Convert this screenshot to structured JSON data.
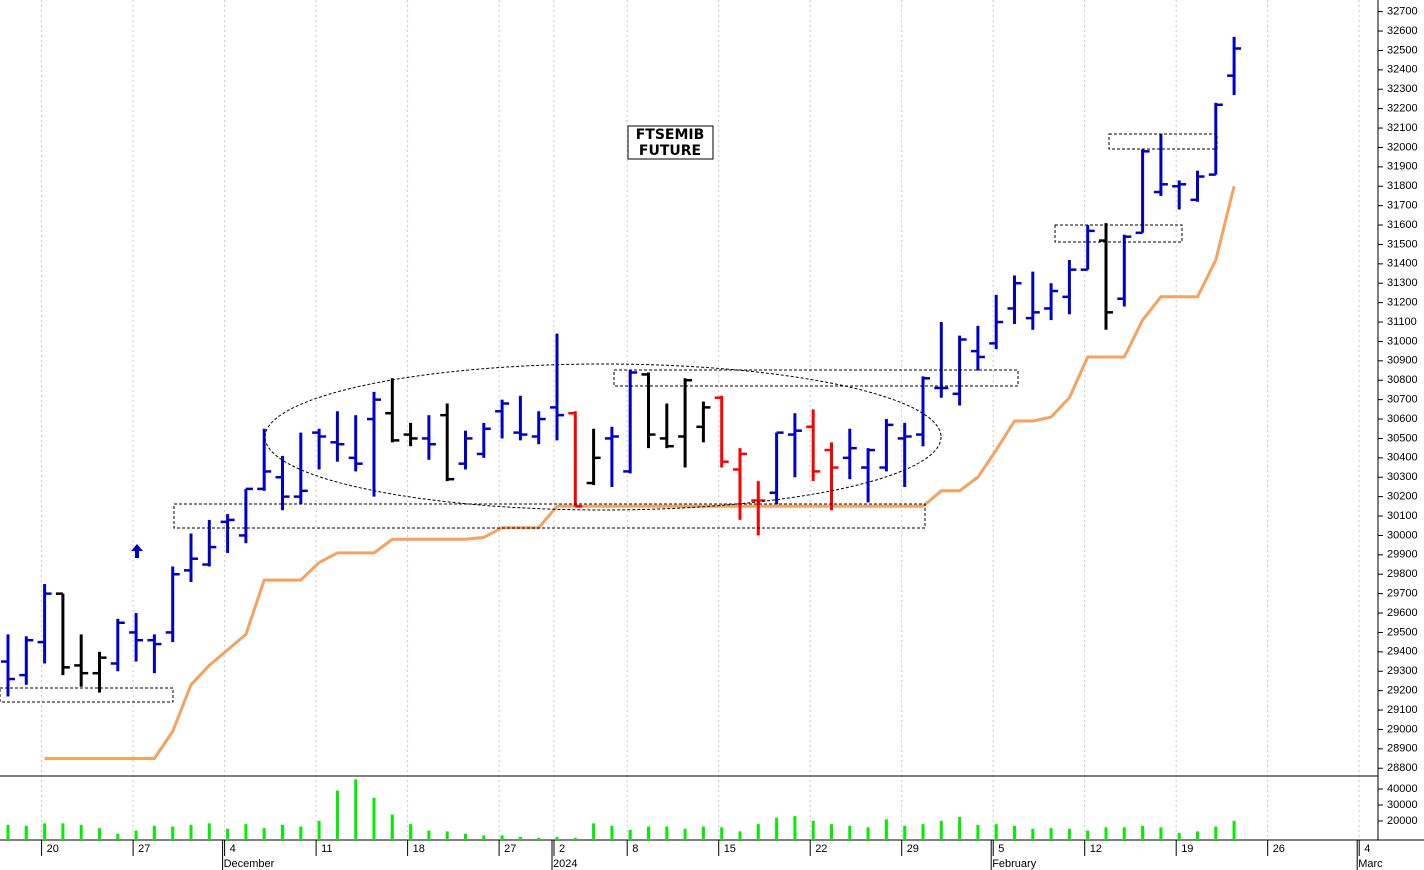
{
  "chart_data": {
    "type": "ohlc",
    "title_lines": [
      "FTSEMIB",
      "FUTURE"
    ],
    "categories": [
      null,
      null,
      "20",
      null,
      null,
      null,
      null,
      "27",
      null,
      null,
      null,
      null,
      "4",
      null,
      null,
      null,
      null,
      "11",
      null,
      null,
      null,
      null,
      "18",
      null,
      null,
      null,
      null,
      "27",
      null,
      null,
      "2",
      null,
      null,
      null,
      "8",
      null,
      null,
      null,
      null,
      "15",
      null,
      null,
      null,
      null,
      "22",
      null,
      null,
      null,
      null,
      "29",
      null,
      null,
      null,
      null,
      "5",
      null,
      null,
      null,
      null,
      "12",
      null,
      null,
      null,
      null,
      "19",
      null,
      null,
      null,
      null,
      "26",
      null,
      null,
      null,
      null,
      "4"
    ],
    "months": [
      null,
      null,
      null,
      null,
      null,
      null,
      null,
      null,
      null,
      null,
      null,
      null,
      "December",
      null,
      null,
      null,
      null,
      null,
      null,
      null,
      null,
      null,
      null,
      null,
      null,
      null,
      null,
      null,
      null,
      null,
      "2024",
      null,
      null,
      null,
      null,
      null,
      null,
      null,
      null,
      null,
      null,
      null,
      null,
      null,
      null,
      null,
      null,
      null,
      null,
      null,
      null,
      null,
      null,
      null,
      "February",
      null,
      null,
      null,
      null,
      null,
      null,
      null,
      null,
      null,
      null,
      null,
      null,
      null,
      null,
      null,
      null,
      null,
      null,
      null,
      "Marc"
    ],
    "open": [
      29350,
      29280,
      29450,
      29700,
      29330,
      29290,
      29340,
      29500,
      29460,
      29500,
      29820,
      29850,
      30070,
      30000,
      30240,
      30300,
      30200,
      30530,
      30480,
      30400,
      30600,
      30630,
      30520,
      30500,
      30620,
      30370,
      30420,
      30640,
      30530,
      30510,
      30660,
      30630,
      30270,
      30500,
      30330,
      30830,
      30500,
      30510,
      30560,
      30710,
      30340,
      30180,
      30220,
      30520,
      30560,
      30440,
      30400,
      30350,
      30350,
      30500,
      30520,
      30760,
      30730,
      30950,
      30990,
      31170,
      31120,
      31170,
      31230,
      31370,
      31520,
      31220,
      31560,
      31770,
      31800,
      31730,
      31860,
      32370,
      null,
      null,
      null,
      null,
      null,
      null,
      null
    ],
    "high": [
      29490,
      29480,
      29750,
      29700,
      29490,
      29400,
      29570,
      29600,
      29490,
      29840,
      30010,
      30080,
      30110,
      30240,
      30550,
      30410,
      30530,
      30550,
      30640,
      30620,
      30740,
      30810,
      30580,
      30620,
      30680,
      30540,
      30580,
      30700,
      30720,
      30640,
      31040,
      30640,
      30550,
      30560,
      30850,
      30840,
      30680,
      30810,
      30690,
      30720,
      30450,
      30280,
      30530,
      30630,
      30650,
      30480,
      30550,
      30450,
      30600,
      30580,
      30820,
      31100,
      31030,
      31080,
      31240,
      31340,
      31360,
      31300,
      31420,
      31600,
      31610,
      31550,
      31990,
      32070,
      31830,
      31880,
      32230,
      32570,
      null,
      null,
      null,
      null,
      null,
      null,
      null
    ],
    "low": [
      29170,
      29230,
      29340,
      29280,
      29220,
      29190,
      29300,
      29350,
      29290,
      29450,
      29760,
      29840,
      29910,
      29960,
      30230,
      30130,
      30160,
      30340,
      30380,
      30330,
      30200,
      30480,
      30460,
      30390,
      30280,
      30340,
      30400,
      30500,
      30490,
      30470,
      30490,
      30150,
      30260,
      30250,
      30320,
      30450,
      30450,
      30350,
      30480,
      30350,
      30080,
      30000,
      30160,
      30300,
      30280,
      30130,
      30290,
      30170,
      30330,
      30250,
      30460,
      30710,
      30670,
      30850,
      30960,
      31090,
      31060,
      31110,
      31140,
      31370,
      31060,
      31180,
      31560,
      31750,
      31680,
      31720,
      31860,
      32270,
      null,
      null,
      null,
      null,
      null,
      null,
      null
    ],
    "close": [
      29260,
      29460,
      29700,
      29320,
      29290,
      29370,
      29550,
      29460,
      29440,
      29800,
      29880,
      29940,
      30080,
      30240,
      30330,
      30200,
      30230,
      30510,
      30470,
      30370,
      30700,
      30490,
      30500,
      30470,
      30290,
      30500,
      30550,
      30680,
      30520,
      30600,
      30620,
      30150,
      30400,
      30510,
      30840,
      30520,
      30460,
      30800,
      30660,
      30380,
      30420,
      30180,
      30530,
      30540,
      30330,
      30350,
      30450,
      30440,
      30570,
      30510,
      30810,
      30760,
      31010,
      30920,
      31100,
      31300,
      31150,
      31260,
      31370,
      31570,
      31150,
      31540,
      31980,
      31810,
      31810,
      31850,
      32220,
      32510,
      null,
      null,
      null,
      null,
      null,
      null,
      null
    ],
    "bar_colors": [
      "#0000cc",
      "#0000cc",
      "#0000cc",
      "#000000",
      "#000000",
      "#000000",
      "#0000cc",
      "#0000cc",
      "#0000cc",
      "#0000cc",
      "#0000cc",
      "#0000cc",
      "#0000cc",
      "#0000cc",
      "#0000cc",
      "#0000cc",
      "#0000cc",
      "#0000cc",
      "#0000cc",
      "#0000cc",
      "#0000cc",
      "#000000",
      "#000000",
      "#0000cc",
      "#000000",
      "#0000cc",
      "#0000cc",
      "#0000cc",
      "#0000cc",
      "#0000cc",
      "#0000cc",
      "#ff0000",
      "#000000",
      "#0000cc",
      "#0000cc",
      "#000000",
      "#000000",
      "#000000",
      "#000000",
      "#ff0000",
      "#ff0000",
      "#ff0000",
      "#0000cc",
      "#0000cc",
      "#ff0000",
      "#ff0000",
      "#0000cc",
      "#0000cc",
      "#0000cc",
      "#0000cc",
      "#0000cc",
      "#0000cc",
      "#0000cc",
      "#0000cc",
      "#0000cc",
      "#0000cc",
      "#0000cc",
      "#0000cc",
      "#0000cc",
      "#0000cc",
      "#000000",
      "#0000cc",
      "#0000cc",
      "#0000cc",
      "#0000cc",
      "#0000cc",
      "#0000cc",
      "#0000cc",
      null,
      null,
      null,
      null,
      null,
      null,
      null
    ],
    "line": {
      "color": "#f5a25d",
      "values": [
        null,
        null,
        28850,
        28850,
        28850,
        28850,
        28850,
        28850,
        28850,
        28990,
        29230,
        29330,
        29410,
        29490,
        29770,
        29770,
        29770,
        29860,
        29910,
        29910,
        29910,
        29980,
        29980,
        29980,
        29980,
        29980,
        29990,
        30040,
        30040,
        30040,
        30150,
        30150,
        30150,
        30150,
        30150,
        30150,
        30150,
        30150,
        30150,
        30150,
        30150,
        30150,
        30150,
        30150,
        30150,
        30150,
        30150,
        30150,
        30150,
        30150,
        30150,
        30230,
        30230,
        30300,
        30440,
        30590,
        30590,
        30610,
        30710,
        30920,
        30920,
        30920,
        31110,
        31230,
        31230,
        31230,
        31420,
        31800,
        null,
        null,
        null,
        null,
        null,
        null,
        null
      ]
    },
    "ylim": [
      28760,
      32760
    ],
    "yticks": [
      28800,
      28900,
      29000,
      29100,
      29200,
      29300,
      29400,
      29500,
      29600,
      29700,
      29800,
      29900,
      30000,
      30100,
      30200,
      30300,
      30400,
      30500,
      30600,
      30700,
      30800,
      30900,
      31000,
      31100,
      31200,
      31300,
      31400,
      31500,
      31600,
      31700,
      31800,
      31900,
      32000,
      32100,
      32200,
      32300,
      32400,
      32500,
      32600,
      32700
    ],
    "volume": {
      "color": "#00ee00",
      "ylim": [
        8100,
        47500
      ],
      "yticks": [
        20000,
        30000,
        40000
      ],
      "values": [
        17500,
        17000,
        18500,
        18500,
        17500,
        15500,
        12000,
        14000,
        17000,
        16500,
        17500,
        18500,
        15000,
        18000,
        15500,
        17500,
        16500,
        20000,
        39000,
        46000,
        34500,
        24000,
        18000,
        14000,
        13500,
        12000,
        11000,
        11000,
        10000,
        9500,
        10000,
        9500,
        18500,
        17000,
        14500,
        16500,
        16500,
        15000,
        16500,
        16000,
        13500,
        18000,
        22000,
        23000,
        20000,
        18000,
        17000,
        16000,
        21000,
        17000,
        18000,
        20000,
        22500,
        17500,
        18000,
        17000,
        15000,
        15500,
        15000,
        14000,
        16000,
        16000,
        17000,
        16000,
        12500,
        13500,
        16500,
        20000,
        null,
        null,
        null,
        null,
        null,
        null,
        null
      ]
    }
  }
}
